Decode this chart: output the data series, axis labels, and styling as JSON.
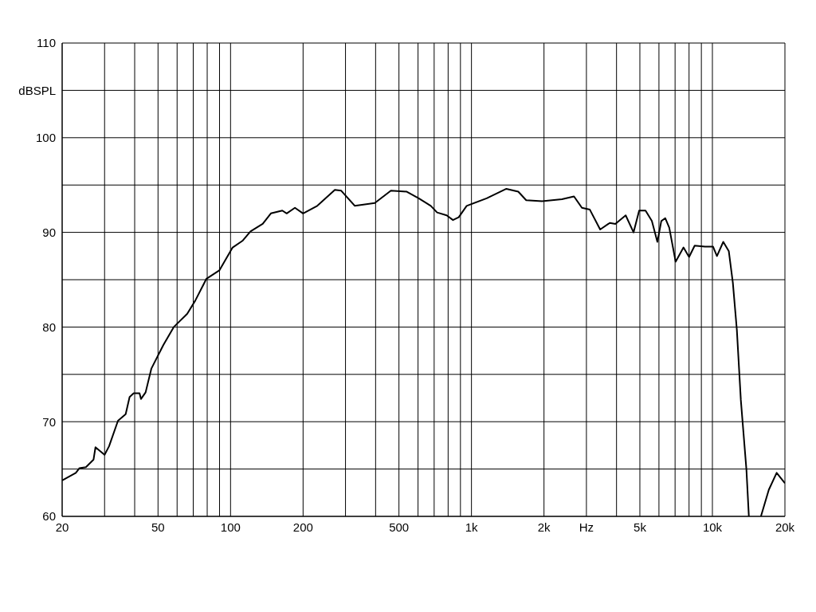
{
  "chart_data": {
    "type": "line",
    "log": "x",
    "grid": true,
    "marker": "none",
    "line_style": "solid",
    "xlim": [
      20,
      20000
    ],
    "ylim": [
      60,
      110
    ],
    "xticks": [
      20,
      {
        "value": 30,
        "label": null
      },
      {
        "value": 40,
        "label": null
      },
      50,
      {
        "value": 60,
        "label": null
      },
      {
        "value": 70,
        "label": null
      },
      {
        "value": 80,
        "label": null
      },
      {
        "value": 90,
        "label": null
      },
      100,
      200,
      {
        "value": 300,
        "label": null
      },
      {
        "value": 400,
        "label": null
      },
      500,
      {
        "value": 600,
        "label": null
      },
      {
        "value": 700,
        "label": null
      },
      {
        "value": 800,
        "label": null
      },
      {
        "value": 900,
        "label": null
      },
      {
        "value": 1000,
        "label": "1k"
      },
      {
        "value": 2000,
        "label": "2k"
      },
      {
        "value": 3000,
        "label": "Hz"
      },
      {
        "value": 4000,
        "label": null
      },
      {
        "value": 5000,
        "label": "5k"
      },
      {
        "value": 6000,
        "label": null
      },
      {
        "value": 7000,
        "label": null
      },
      {
        "value": 8000,
        "label": null
      },
      {
        "value": 9000,
        "label": null
      },
      {
        "value": 10000,
        "label": "10k"
      },
      {
        "value": 20000,
        "label": "20k"
      }
    ],
    "yticks": [
      60,
      {
        "value": 65,
        "label": null
      },
      70,
      {
        "value": 75,
        "label": null
      },
      80,
      {
        "value": 85,
        "label": null
      },
      90,
      {
        "value": 95,
        "label": null
      },
      100,
      {
        "value": 105,
        "label": "dBSPL"
      },
      110
    ],
    "series": [
      {
        "color": "#000000",
        "x": [
          20,
          22.8,
          23.6,
          25.1,
          27,
          27.5,
          30,
          31.3,
          34.1,
          36.7,
          38.1,
          39.6,
          41.9,
          42.5,
          44.4,
          46.9,
          52.6,
          58.1,
          66.1,
          71.4,
          79.4,
          90,
          102,
          112,
          121,
          136,
          147,
          164,
          171,
          185,
          200,
          229,
          271,
          288,
          328,
          397,
          463,
          539,
          604,
          678,
          720,
          789,
          838,
          885,
          955,
          1156,
          1396,
          1564,
          1687,
          1964,
          2375,
          2664,
          2873,
          3100,
          3421,
          3750,
          3955,
          4366,
          4708,
          4966,
          5277,
          5607,
          5910,
          6137,
          6374,
          6620,
          7036,
          7587,
          8002,
          8442,
          9322,
          10058,
          10444,
          11095,
          11700,
          12158,
          12634,
          13123,
          13846,
          14170,
          15000,
          15900,
          17140,
          18480,
          20000
        ],
        "values": [
          63.8,
          64.6,
          65.1,
          65.2,
          66,
          67.3,
          66.5,
          67.4,
          70.1,
          70.8,
          72.6,
          73,
          73,
          72.4,
          73.1,
          75.6,
          78.1,
          80,
          81.4,
          82.8,
          85.1,
          86,
          88.4,
          89.1,
          90.1,
          90.9,
          92,
          92.3,
          92,
          92.6,
          92,
          92.8,
          94.5,
          94.4,
          92.8,
          93.1,
          94.4,
          94.3,
          93.6,
          92.8,
          92.1,
          91.8,
          91.3,
          91.6,
          92.8,
          93.6,
          94.6,
          94.3,
          93.4,
          93.3,
          93.5,
          93.8,
          92.6,
          92.4,
          90.3,
          91,
          90.9,
          91.8,
          90,
          92.3,
          92.3,
          91.2,
          89,
          91.2,
          91.5,
          90.5,
          86.9,
          88.4,
          87.4,
          88.6,
          88.5,
          88.5,
          87.5,
          89,
          88,
          84.7,
          79.7,
          72.3,
          64.9,
          60,
          null,
          60,
          62.8,
          64.6,
          63.5
        ]
      }
    ]
  }
}
